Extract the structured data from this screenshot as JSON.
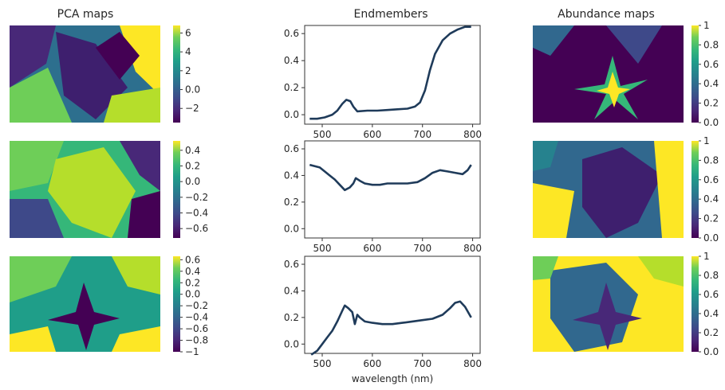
{
  "chart_data": {
    "type": "figure-grid",
    "columns": [
      {
        "title": "PCA maps"
      },
      {
        "title": "Endmembers"
      },
      {
        "title": "Abundance maps"
      }
    ],
    "colormap": "viridis",
    "pca_colorbars": [
      {
        "ticks": [
          6,
          4,
          2,
          0,
          -2
        ],
        "range": [
          -3.5,
          6.8
        ]
      },
      {
        "ticks": [
          0.4,
          0.2,
          0.0,
          -0.2,
          -0.4,
          -0.6
        ],
        "range": [
          -0.72,
          0.52
        ]
      },
      {
        "ticks": [
          0.6,
          0.4,
          0.2,
          0.0,
          -0.2,
          -0.4,
          -0.6,
          -0.8,
          -1.0
        ],
        "range": [
          -1.0,
          0.66
        ]
      }
    ],
    "abundance_colorbars": [
      {
        "ticks": [
          1.0,
          0.8,
          0.6,
          0.4,
          0.2,
          0.0
        ],
        "range": [
          0,
          1
        ]
      },
      {
        "ticks": [
          1.0,
          0.8,
          0.6,
          0.4,
          0.2,
          0.0
        ],
        "range": [
          0,
          1
        ]
      },
      {
        "ticks": [
          1.0,
          0.8,
          0.6,
          0.4,
          0.2,
          0.0
        ],
        "range": [
          0,
          1
        ]
      }
    ],
    "endmembers": {
      "xlabel": "wavelength (nm)",
      "xticks": [
        500,
        600,
        700,
        800
      ],
      "yticks": [
        0.0,
        0.2,
        0.4,
        0.6
      ],
      "xlim": [
        465,
        815
      ],
      "ylim": [
        -0.07,
        0.66
      ],
      "line_color": "#1f3b5a",
      "series": [
        {
          "x": [
            475,
            490,
            505,
            520,
            530,
            540,
            548,
            556,
            562,
            570,
            590,
            610,
            630,
            650,
            670,
            685,
            695,
            705,
            715,
            725,
            740,
            755,
            770,
            785,
            797
          ],
          "y": [
            -0.03,
            -0.03,
            -0.02,
            0.0,
            0.03,
            0.08,
            0.11,
            0.1,
            0.06,
            0.025,
            0.03,
            0.03,
            0.035,
            0.04,
            0.045,
            0.06,
            0.09,
            0.18,
            0.33,
            0.45,
            0.55,
            0.6,
            0.63,
            0.65,
            0.65
          ]
        },
        {
          "x": [
            475,
            485,
            495,
            505,
            515,
            525,
            535,
            545,
            555,
            562,
            567,
            575,
            585,
            600,
            615,
            630,
            650,
            670,
            690,
            705,
            720,
            735,
            750,
            765,
            780,
            790,
            797
          ],
          "y": [
            0.48,
            0.47,
            0.46,
            0.43,
            0.4,
            0.37,
            0.33,
            0.29,
            0.31,
            0.34,
            0.38,
            0.36,
            0.34,
            0.33,
            0.33,
            0.34,
            0.34,
            0.34,
            0.35,
            0.38,
            0.42,
            0.44,
            0.43,
            0.42,
            0.41,
            0.44,
            0.48
          ]
        },
        {
          "x": [
            478,
            490,
            500,
            510,
            520,
            530,
            540,
            545,
            552,
            560,
            565,
            570,
            575,
            585,
            600,
            620,
            640,
            660,
            680,
            700,
            720,
            740,
            755,
            765,
            775,
            785,
            797
          ],
          "y": [
            -0.08,
            -0.05,
            0.0,
            0.05,
            0.1,
            0.17,
            0.25,
            0.29,
            0.27,
            0.24,
            0.15,
            0.22,
            0.2,
            0.17,
            0.16,
            0.15,
            0.15,
            0.16,
            0.17,
            0.18,
            0.19,
            0.22,
            0.27,
            0.31,
            0.32,
            0.28,
            0.2
          ]
        }
      ]
    }
  }
}
